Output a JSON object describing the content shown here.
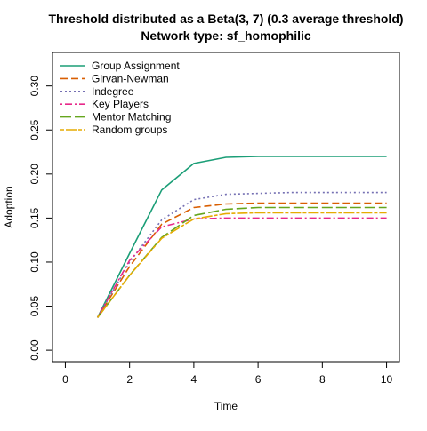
{
  "chart_data": {
    "type": "line",
    "title": "Threshold distributed as a Beta(3, 7) (0.3 average threshold)",
    "subtitle": "Network type: sf_homophilic",
    "xlabel": "Time",
    "ylabel": "Adoption",
    "xlim": [
      -0.4,
      10.4
    ],
    "ylim": [
      -0.013,
      0.338
    ],
    "xticks": [
      0,
      2,
      4,
      6,
      8,
      10
    ],
    "yticks": [
      0.0,
      0.05,
      0.1,
      0.15,
      0.2,
      0.25,
      0.3
    ],
    "xtick_labels": [
      "0",
      "2",
      "4",
      "6",
      "8",
      "10"
    ],
    "ytick_labels": [
      "0.00",
      "0.05",
      "0.10",
      "0.15",
      "0.20",
      "0.25",
      "0.30"
    ],
    "grid": false,
    "legend_position": "top-left",
    "x": [
      1,
      2,
      3,
      4,
      5,
      6,
      7,
      8,
      9,
      10
    ],
    "series": [
      {
        "name": "Group Assignment",
        "color": "#1b9e77",
        "dash": "solid",
        "values": [
          0.037,
          0.11,
          0.182,
          0.212,
          0.219,
          0.22,
          0.22,
          0.22,
          0.22,
          0.22
        ]
      },
      {
        "name": "Girvan-Newman",
        "color": "#d95f02",
        "dash": "dashed",
        "values": [
          0.037,
          0.095,
          0.143,
          0.162,
          0.166,
          0.167,
          0.167,
          0.167,
          0.167,
          0.167
        ]
      },
      {
        "name": "Indegree",
        "color": "#7570b3",
        "dash": "dotted",
        "values": [
          0.037,
          0.1,
          0.148,
          0.171,
          0.177,
          0.178,
          0.179,
          0.179,
          0.179,
          0.179
        ]
      },
      {
        "name": "Key Players",
        "color": "#e7298a",
        "dash": "dotdash",
        "values": [
          0.037,
          0.102,
          0.14,
          0.149,
          0.15,
          0.15,
          0.15,
          0.15,
          0.15,
          0.15
        ]
      },
      {
        "name": "Mentor Matching",
        "color": "#66a61e",
        "dash": "longdash",
        "values": [
          0.037,
          0.085,
          0.128,
          0.153,
          0.16,
          0.162,
          0.162,
          0.162,
          0.162,
          0.162
        ]
      },
      {
        "name": "Random groups",
        "color": "#e6ab02",
        "dash": "twodash",
        "values": [
          0.037,
          0.085,
          0.127,
          0.149,
          0.155,
          0.156,
          0.156,
          0.156,
          0.156,
          0.156
        ]
      }
    ]
  }
}
